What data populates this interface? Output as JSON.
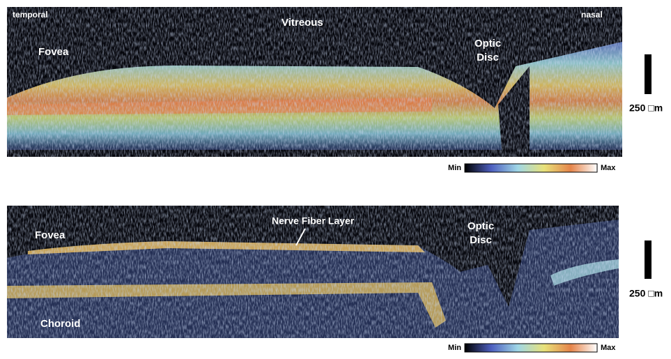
{
  "top_panel": {
    "labels": {
      "temporal": "temporal",
      "vitreous": "Vitreous",
      "nasal": "nasal",
      "fovea": "Fovea",
      "optic_disc": [
        "Optic",
        "Disc"
      ]
    },
    "scale_bar": "250 □m",
    "colorbar": {
      "min": "Min",
      "max": "Max"
    }
  },
  "bottom_panel": {
    "labels": {
      "fovea": "Fovea",
      "nerve_fiber_layer": "Nerve Fiber Layer",
      "optic_disc": [
        "Optic",
        "Disc"
      ],
      "choroid": "Choroid"
    },
    "scale_bar": "250 □m",
    "colorbar": {
      "min": "Min",
      "max": "Max"
    }
  }
}
